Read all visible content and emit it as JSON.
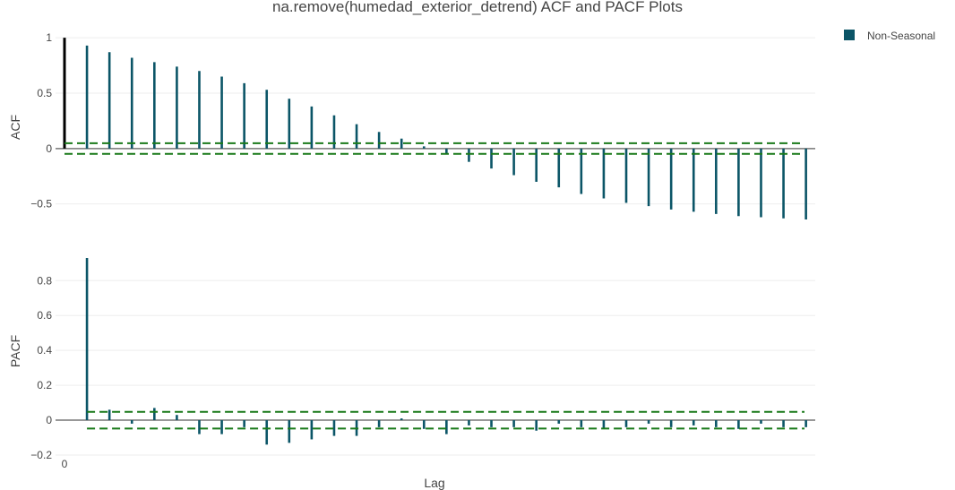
{
  "chart_data": {
    "title": "na.remove(humedad_exterior_detrend) ACF and PACF Plots",
    "xlabel": "Lag",
    "x_tick_labels": [
      "0"
    ],
    "legend": {
      "entries": [
        "Non-Seasonal"
      ],
      "placement": "top-right"
    },
    "colors": {
      "bar": "#0b5567",
      "lag0": "#000000",
      "ci": "#1a7a1a",
      "zero_line": "#777777",
      "grid": "#eeeeee"
    },
    "charts": [
      {
        "type": "bar",
        "panel": "acf",
        "ylabel": "ACF",
        "ylim": [
          -0.64,
          1.05
        ],
        "yticks": [
          1,
          0.5,
          0,
          -0.5
        ],
        "ytick_labels": [
          "1",
          "0.5",
          "0",
          "−0.5"
        ],
        "confidence_band": [
          0.048,
          -0.048
        ],
        "lags": [
          0,
          1,
          2,
          3,
          4,
          5,
          6,
          7,
          8,
          9,
          10,
          11,
          12,
          13,
          14,
          15,
          16,
          17,
          18,
          19,
          20,
          21,
          22,
          23,
          24,
          25,
          26,
          27,
          28,
          29,
          30,
          31,
          32,
          33
        ],
        "values": [
          1,
          0.93,
          0.87,
          0.82,
          0.78,
          0.74,
          0.7,
          0.65,
          0.59,
          0.53,
          0.45,
          0.38,
          0.3,
          0.22,
          0.15,
          0.09,
          0.02,
          -0.05,
          -0.12,
          -0.18,
          -0.24,
          -0.3,
          -0.35,
          -0.41,
          -0.45,
          -0.49,
          -0.52,
          -0.55,
          -0.57,
          -0.59,
          -0.61,
          -0.62,
          -0.63,
          -0.64
        ]
      },
      {
        "type": "bar",
        "panel": "pacf",
        "ylabel": "PACF",
        "ylim": [
          -0.2,
          0.93
        ],
        "yticks": [
          0.8,
          0.6,
          0.4,
          0.2,
          0,
          -0.2
        ],
        "ytick_labels": [
          "0.8",
          "0.6",
          "0.4",
          "0.2",
          "0",
          "−0.2"
        ],
        "confidence_band": [
          0.048,
          -0.048
        ],
        "lags": [
          1,
          2,
          3,
          4,
          5,
          6,
          7,
          8,
          9,
          10,
          11,
          12,
          13,
          14,
          15,
          16,
          17,
          18,
          19,
          20,
          21,
          22,
          23,
          24,
          25,
          26,
          27,
          28,
          29,
          30,
          31,
          32,
          33
        ],
        "values": [
          0.93,
          0.06,
          -0.02,
          0.07,
          0.03,
          -0.08,
          -0.08,
          -0.04,
          -0.14,
          -0.13,
          -0.11,
          -0.09,
          -0.09,
          -0.04,
          0.01,
          -0.05,
          -0.08,
          -0.03,
          -0.04,
          -0.04,
          -0.06,
          -0.02,
          -0.04,
          -0.05,
          -0.04,
          -0.02,
          -0.04,
          -0.03,
          -0.04,
          -0.05,
          -0.02,
          -0.04,
          -0.04
        ]
      }
    ]
  }
}
